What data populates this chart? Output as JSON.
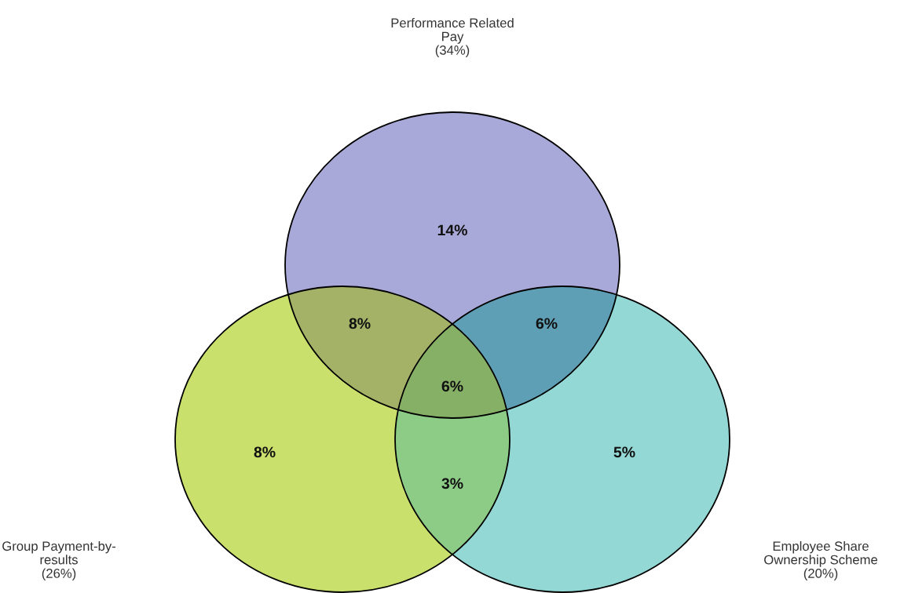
{
  "chart_data": {
    "type": "other",
    "categories": [
      null,
      null,
      null,
      null,
      null,
      null,
      null
    ],
    "values": [
      14,
      8,
      6,
      6,
      8,
      5,
      3
    ],
    "value_labels": [
      "14%",
      "8%",
      "6%",
      "6%",
      "8%",
      "5%",
      "3%"
    ],
    "colors": [
      "#a9a9d9",
      "#a3b266",
      "#5f9fb5",
      "#86b066",
      "#c9e16c",
      "#93d8d4",
      "#8ccc86"
    ],
    "annotations": [
      "Performance Related\nPay\n(34%)",
      "Group Payment-by-\nresults\n(26%)",
      "Employee Share\nOwnership Scheme\n(20%)"
    ]
  }
}
